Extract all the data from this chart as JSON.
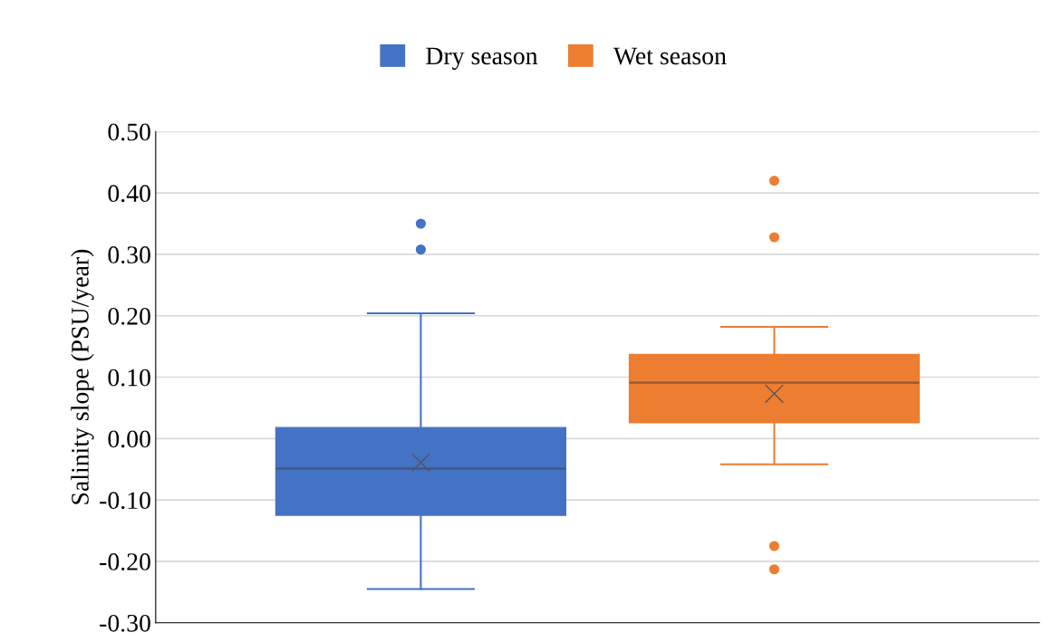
{
  "chart_data": {
    "type": "box",
    "ylabel": "Salinity slope (PSU/year)",
    "categories": [
      null
    ],
    "series": [
      {
        "name": "Dry season",
        "color": "#4472c4",
        "boxes": [
          {
            "low": -0.245,
            "q1": -0.125,
            "median": -0.049,
            "q3": 0.018,
            "high": 0.204,
            "mean": -0.039,
            "outliers": [
              0.35,
              0.308
            ]
          }
        ]
      },
      {
        "name": "Wet season",
        "color": "#ed7d31",
        "boxes": [
          {
            "low": -0.042,
            "q1": 0.026,
            "median": 0.091,
            "q3": 0.137,
            "high": 0.182,
            "mean": 0.073,
            "outliers": [
              0.42,
              0.328,
              -0.175,
              -0.213
            ]
          }
        ]
      }
    ],
    "ylim": [
      -0.3,
      0.5
    ],
    "yticks": [
      {
        "value": -0.3,
        "label": "-0.30"
      },
      {
        "value": -0.2,
        "label": "-0.20"
      },
      {
        "value": -0.1,
        "label": "-0.10"
      },
      {
        "value": 0,
        "label": "0.00"
      },
      {
        "value": 0.1,
        "label": "0.10"
      },
      {
        "value": 0.2,
        "label": "0.20"
      },
      {
        "value": 0.3,
        "label": "0.30"
      },
      {
        "value": 0.4,
        "label": "0.40"
      },
      {
        "value": 0.5,
        "label": "0.50"
      }
    ],
    "grid": "y",
    "legend": "top",
    "marker": "circle"
  }
}
